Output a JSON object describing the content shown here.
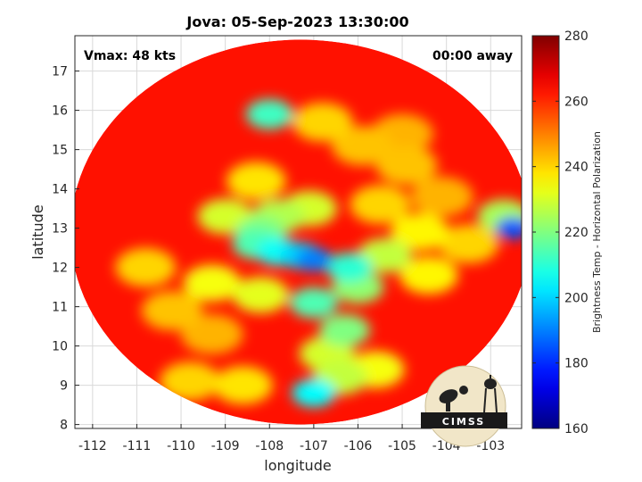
{
  "chart_data": {
    "type": "heatmap",
    "title": "Jova: 05-Sep-2023 13:30:00",
    "xlabel": "longitude",
    "ylabel": "latitude",
    "xlim": [
      -112.4,
      -102.3
    ],
    "ylim": [
      7.9,
      17.9
    ],
    "xticks": [
      -112,
      -111,
      -110,
      -109,
      -108,
      -107,
      -106,
      -105,
      -104,
      -103
    ],
    "yticks": [
      8,
      9,
      10,
      11,
      12,
      13,
      14,
      15,
      16,
      17
    ],
    "grid": true,
    "annotations": {
      "vmax": "Vmax: 48 kts",
      "time_away": "00:00 away"
    },
    "swath": {
      "center_lon": -107.3,
      "center_lat": 12.9,
      "radius_lon": 5.2,
      "radius_lat": 4.9,
      "background_temp": 263
    },
    "features": [
      {
        "lon": -107.0,
        "lat": 12.2,
        "temp": 190
      },
      {
        "lon": -107.3,
        "lat": 12.3,
        "temp": 200
      },
      {
        "lon": -107.8,
        "lat": 12.4,
        "temp": 206
      },
      {
        "lon": -108.3,
        "lat": 12.6,
        "temp": 214
      },
      {
        "lon": -108.2,
        "lat": 12.9,
        "temp": 220
      },
      {
        "lon": -107.8,
        "lat": 13.3,
        "temp": 226
      },
      {
        "lon": -107.1,
        "lat": 13.5,
        "temp": 230
      },
      {
        "lon": -106.2,
        "lat": 12.0,
        "temp": 210
      },
      {
        "lon": -106.0,
        "lat": 11.5,
        "temp": 222
      },
      {
        "lon": -107.0,
        "lat": 11.1,
        "temp": 214
      },
      {
        "lon": -108.2,
        "lat": 11.3,
        "temp": 232
      },
      {
        "lon": -109.3,
        "lat": 11.6,
        "temp": 234
      },
      {
        "lon": -109.0,
        "lat": 13.3,
        "temp": 230
      },
      {
        "lon": -108.3,
        "lat": 14.2,
        "temp": 238
      },
      {
        "lon": -105.4,
        "lat": 12.3,
        "temp": 228
      },
      {
        "lon": -104.6,
        "lat": 12.9,
        "temp": 236
      },
      {
        "lon": -106.3,
        "lat": 10.4,
        "temp": 220
      },
      {
        "lon": -106.7,
        "lat": 9.8,
        "temp": 230
      },
      {
        "lon": -106.4,
        "lat": 9.2,
        "temp": 228
      },
      {
        "lon": -107.0,
        "lat": 8.8,
        "temp": 205
      },
      {
        "lon": -105.6,
        "lat": 9.4,
        "temp": 234
      },
      {
        "lon": -108.6,
        "lat": 9.0,
        "temp": 238
      },
      {
        "lon": -109.8,
        "lat": 9.1,
        "temp": 240
      },
      {
        "lon": -108.0,
        "lat": 15.9,
        "temp": 212
      },
      {
        "lon": -106.8,
        "lat": 15.7,
        "temp": 240
      },
      {
        "lon": -105.9,
        "lat": 15.1,
        "temp": 242
      },
      {
        "lon": -105.0,
        "lat": 15.4,
        "temp": 244
      },
      {
        "lon": -104.9,
        "lat": 14.6,
        "temp": 242
      },
      {
        "lon": -104.1,
        "lat": 13.8,
        "temp": 244
      },
      {
        "lon": -103.5,
        "lat": 12.6,
        "temp": 240
      },
      {
        "lon": -102.5,
        "lat": 13.0,
        "temp": 185
      },
      {
        "lon": -102.7,
        "lat": 13.3,
        "temp": 225
      },
      {
        "lon": -110.8,
        "lat": 12.0,
        "temp": 240
      },
      {
        "lon": -110.2,
        "lat": 10.9,
        "temp": 242
      },
      {
        "lon": -109.3,
        "lat": 10.3,
        "temp": 244
      },
      {
        "lon": -105.5,
        "lat": 13.6,
        "temp": 240
      },
      {
        "lon": -104.4,
        "lat": 11.8,
        "temp": 236
      }
    ],
    "colorbar": {
      "label": "Brightness Temp - Horizontal Polarization",
      "range": [
        160,
        280
      ],
      "ticks": [
        160,
        180,
        200,
        220,
        240,
        260,
        280
      ],
      "colormap": "jet"
    }
  },
  "logo": {
    "text": "CIMSS"
  }
}
